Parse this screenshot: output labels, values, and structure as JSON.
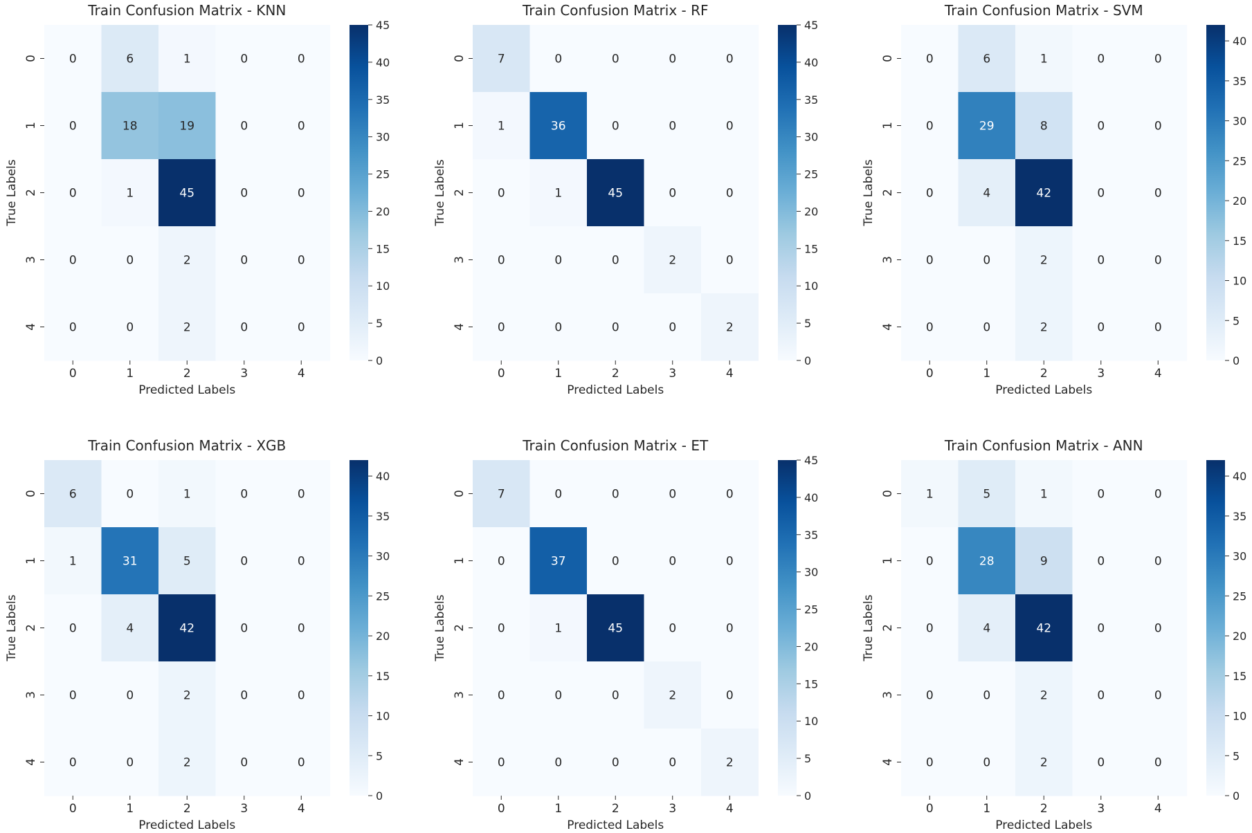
{
  "chart_data": [
    {
      "type": "heatmap",
      "title": "Train Confusion Matrix - KNN",
      "xlabel": "Predicted Labels",
      "ylabel": "True Labels",
      "x_ticks": [
        "0",
        "1",
        "2",
        "3",
        "4"
      ],
      "y_ticks": [
        "0",
        "1",
        "2",
        "3",
        "4"
      ],
      "matrix": [
        [
          0,
          6,
          1,
          0,
          0
        ],
        [
          0,
          18,
          19,
          0,
          0
        ],
        [
          0,
          1,
          45,
          0,
          0
        ],
        [
          0,
          0,
          2,
          0,
          0
        ],
        [
          0,
          0,
          2,
          0,
          0
        ]
      ],
      "vmin": 0,
      "vmax": 45,
      "colorbar_ticks": [
        0,
        5,
        10,
        15,
        20,
        25,
        30,
        35,
        40,
        45
      ],
      "colormap": "Blues"
    },
    {
      "type": "heatmap",
      "title": "Train Confusion Matrix - RF",
      "xlabel": "Predicted Labels",
      "ylabel": "True Labels",
      "x_ticks": [
        "0",
        "1",
        "2",
        "3",
        "4"
      ],
      "y_ticks": [
        "0",
        "1",
        "2",
        "3",
        "4"
      ],
      "matrix": [
        [
          7,
          0,
          0,
          0,
          0
        ],
        [
          1,
          36,
          0,
          0,
          0
        ],
        [
          0,
          1,
          45,
          0,
          0
        ],
        [
          0,
          0,
          0,
          2,
          0
        ],
        [
          0,
          0,
          0,
          0,
          2
        ]
      ],
      "vmin": 0,
      "vmax": 45,
      "colorbar_ticks": [
        0,
        5,
        10,
        15,
        20,
        25,
        30,
        35,
        40,
        45
      ],
      "colormap": "Blues"
    },
    {
      "type": "heatmap",
      "title": "Train Confusion Matrix - SVM",
      "xlabel": "Predicted Labels",
      "ylabel": "True Labels",
      "x_ticks": [
        "0",
        "1",
        "2",
        "3",
        "4"
      ],
      "y_ticks": [
        "0",
        "1",
        "2",
        "3",
        "4"
      ],
      "matrix": [
        [
          0,
          6,
          1,
          0,
          0
        ],
        [
          0,
          29,
          8,
          0,
          0
        ],
        [
          0,
          4,
          42,
          0,
          0
        ],
        [
          0,
          0,
          2,
          0,
          0
        ],
        [
          0,
          0,
          2,
          0,
          0
        ]
      ],
      "vmin": 0,
      "vmax": 42,
      "colorbar_ticks": [
        0,
        5,
        10,
        15,
        20,
        25,
        30,
        35,
        40
      ],
      "colormap": "Blues"
    },
    {
      "type": "heatmap",
      "title": "Train Confusion Matrix - XGB",
      "xlabel": "Predicted Labels",
      "ylabel": "True Labels",
      "x_ticks": [
        "0",
        "1",
        "2",
        "3",
        "4"
      ],
      "y_ticks": [
        "0",
        "1",
        "2",
        "3",
        "4"
      ],
      "matrix": [
        [
          6,
          0,
          1,
          0,
          0
        ],
        [
          1,
          31,
          5,
          0,
          0
        ],
        [
          0,
          4,
          42,
          0,
          0
        ],
        [
          0,
          0,
          2,
          0,
          0
        ],
        [
          0,
          0,
          2,
          0,
          0
        ]
      ],
      "vmin": 0,
      "vmax": 42,
      "colorbar_ticks": [
        0,
        5,
        10,
        15,
        20,
        25,
        30,
        35,
        40
      ],
      "colormap": "Blues"
    },
    {
      "type": "heatmap",
      "title": "Train Confusion Matrix - ET",
      "xlabel": "Predicted Labels",
      "ylabel": "True Labels",
      "x_ticks": [
        "0",
        "1",
        "2",
        "3",
        "4"
      ],
      "y_ticks": [
        "0",
        "1",
        "2",
        "3",
        "4"
      ],
      "matrix": [
        [
          7,
          0,
          0,
          0,
          0
        ],
        [
          0,
          37,
          0,
          0,
          0
        ],
        [
          0,
          1,
          45,
          0,
          0
        ],
        [
          0,
          0,
          0,
          2,
          0
        ],
        [
          0,
          0,
          0,
          0,
          2
        ]
      ],
      "vmin": 0,
      "vmax": 45,
      "colorbar_ticks": [
        0,
        5,
        10,
        15,
        20,
        25,
        30,
        35,
        40,
        45
      ],
      "colormap": "Blues"
    },
    {
      "type": "heatmap",
      "title": "Train Confusion Matrix - ANN",
      "xlabel": "Predicted Labels",
      "ylabel": "True Labels",
      "x_ticks": [
        "0",
        "1",
        "2",
        "3",
        "4"
      ],
      "y_ticks": [
        "0",
        "1",
        "2",
        "3",
        "4"
      ],
      "matrix": [
        [
          1,
          5,
          1,
          0,
          0
        ],
        [
          0,
          28,
          9,
          0,
          0
        ],
        [
          0,
          4,
          42,
          0,
          0
        ],
        [
          0,
          0,
          2,
          0,
          0
        ],
        [
          0,
          0,
          2,
          0,
          0
        ]
      ],
      "vmin": 0,
      "vmax": 42,
      "colorbar_ticks": [
        0,
        5,
        10,
        15,
        20,
        25,
        30,
        35,
        40
      ],
      "colormap": "Blues"
    }
  ]
}
